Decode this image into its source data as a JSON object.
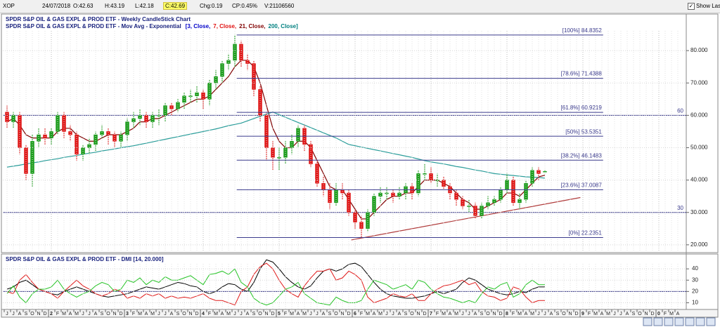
{
  "toolbar": {
    "symbol": "XOP",
    "date": "24/07/2018",
    "open": "O:42.63",
    "high": "H:43.19",
    "low": "L:42.18",
    "close": "C:42.69",
    "change": "Chg:0.19",
    "change_pct": "CP:0.45%",
    "volume": "V:21106560",
    "show_last": "Show Last"
  },
  "chart_data": [
    {
      "type": "candlestick",
      "title": "SPDR S&P OIL & GAS EXPL & PROD ETF - Weekly CandleStick Chart",
      "subtitle": "SPDR S&P OIL & GAS EXPL & PROD ETF - Mov Avg - Exponential",
      "ma_params": [
        {
          "text": "[3, Close,",
          "color": "#0000c8"
        },
        {
          "text": "7, Close,",
          "color": "#e01010"
        },
        {
          "text": "21, Close,",
          "color": "#800000"
        },
        {
          "text": "200, Close]",
          "color": "#008080"
        }
      ],
      "categories": [
        "J",
        "J",
        "A",
        "S",
        "O",
        "N",
        "D",
        "2",
        "F",
        "M",
        "A",
        "M",
        "J",
        "J",
        "A",
        "S",
        "O",
        "N",
        "D",
        "3",
        "F",
        "M",
        "A",
        "M",
        "J",
        "J",
        "A",
        "S",
        "O",
        "N",
        "D",
        "4",
        "F",
        "M",
        "A",
        "M",
        "J",
        "J",
        "A",
        "S",
        "O",
        "N",
        "D",
        "5",
        "F",
        "M",
        "A",
        "M",
        "J",
        "J",
        "A",
        "S",
        "O",
        "N",
        "D",
        "6",
        "F",
        "M",
        "A",
        "M",
        "J",
        "J",
        "A",
        "S",
        "O",
        "N",
        "D",
        "7",
        "F",
        "M",
        "A",
        "M",
        "J",
        "J",
        "A",
        "S",
        "O",
        "N",
        "D",
        "8",
        "F",
        "M",
        "A",
        "M",
        "J",
        "J",
        "A",
        "S",
        "O",
        "N",
        "D",
        "9",
        "F",
        "M",
        "A",
        "M",
        "J",
        "J",
        "A",
        "S",
        "O",
        "N",
        "D",
        "0",
        "F",
        "M",
        "A"
      ],
      "open": [
        61,
        58,
        60,
        50,
        42,
        52,
        54,
        53,
        55,
        60,
        55,
        54,
        48,
        50,
        51,
        54,
        55,
        54,
        52,
        54,
        58,
        59,
        60,
        58,
        60,
        60,
        63,
        62,
        64,
        66,
        66,
        67,
        65,
        70,
        72,
        76,
        77,
        82,
        77,
        76,
        68,
        60,
        50,
        47,
        47,
        50,
        52,
        56,
        51,
        45,
        39,
        37,
        33,
        37,
        36,
        30,
        27,
        25,
        30,
        35,
        36,
        36,
        35,
        36,
        38,
        36,
        42,
        42,
        40,
        40,
        38,
        36,
        34,
        32,
        32,
        29,
        32,
        33,
        34,
        37,
        40,
        33,
        34,
        39,
        43,
        42.63,
        null,
        null,
        null,
        null,
        null,
        null,
        null,
        null,
        null,
        null,
        null,
        null,
        null,
        null,
        null,
        null,
        null,
        null,
        null,
        null,
        null
      ],
      "high": [
        63,
        61,
        61,
        51,
        54,
        56,
        56,
        56,
        61,
        61,
        57,
        55,
        51,
        53,
        55,
        57,
        56,
        55,
        55,
        59,
        61,
        62,
        61,
        61,
        62,
        64,
        64,
        65,
        67,
        68,
        69,
        68,
        71,
        74,
        77,
        79,
        84.84,
        83,
        79,
        77,
        69,
        61,
        52,
        50,
        52,
        54,
        57,
        57,
        52,
        46,
        41,
        39,
        39,
        39,
        37,
        31,
        29,
        31,
        36,
        38,
        38,
        37,
        38,
        39,
        39,
        43,
        45,
        44,
        42,
        41,
        39,
        37,
        35,
        34,
        33,
        33,
        35,
        35,
        38,
        42,
        41,
        36,
        40,
        44,
        44,
        43.19,
        null,
        null,
        null,
        null,
        null,
        null,
        null,
        null,
        null,
        null,
        null,
        null,
        null,
        null,
        null,
        null,
        null,
        null,
        null,
        null,
        null
      ],
      "low": [
        56,
        56,
        48,
        40,
        38,
        50,
        51,
        51,
        54,
        53,
        52,
        46,
        46,
        48,
        49,
        53,
        51,
        50,
        50,
        52,
        56,
        57,
        56,
        56,
        57,
        58,
        60,
        61,
        62,
        64,
        64,
        62,
        63,
        68,
        70,
        74,
        75,
        75,
        74,
        66,
        58,
        46,
        43,
        43,
        45,
        48,
        50,
        49,
        44,
        38,
        35,
        31,
        32,
        34,
        29,
        25,
        22.24,
        24,
        29,
        33,
        34,
        33,
        34,
        34,
        34,
        35,
        40,
        39,
        38,
        37,
        34,
        32,
        31,
        30,
        28,
        28,
        31,
        32,
        33,
        36,
        32,
        31,
        33,
        38,
        40,
        42.18,
        null,
        null,
        null,
        null,
        null,
        null,
        null,
        null,
        null,
        null,
        null,
        null,
        null,
        null,
        null,
        null,
        null,
        null,
        null,
        null,
        null
      ],
      "close": [
        58,
        60,
        50,
        42,
        52,
        54,
        53,
        55,
        60,
        55,
        54,
        48,
        50,
        51,
        54,
        55,
        54,
        52,
        54,
        58,
        59,
        60,
        58,
        60,
        60,
        63,
        62,
        64,
        66,
        66,
        67,
        65,
        70,
        72,
        76,
        77,
        82,
        77,
        76,
        68,
        60,
        50,
        47,
        47,
        50,
        52,
        56,
        51,
        45,
        39,
        37,
        33,
        37,
        36,
        30,
        27,
        25,
        30,
        35,
        36,
        36,
        35,
        36,
        38,
        36,
        42,
        42,
        40,
        40,
        38,
        36,
        34,
        32,
        32,
        29,
        32,
        33,
        34,
        37,
        40,
        33,
        34,
        39,
        43,
        42,
        42.69,
        null,
        null,
        null,
        null,
        null,
        null,
        null,
        null,
        null,
        null,
        null,
        null,
        null,
        null,
        null,
        null,
        null,
        null,
        null,
        null,
        null
      ],
      "up_color": "#1e9e1e",
      "down_color": "#e01818",
      "moving_averages": [
        {
          "color": "#800000",
          "values": [
            58,
            59,
            57,
            54,
            53,
            53,
            53,
            53,
            55,
            56,
            56,
            54,
            53,
            52,
            52,
            53,
            54,
            54,
            54,
            55,
            56,
            58,
            58,
            59,
            59,
            60,
            61,
            62,
            63,
            64,
            65,
            65,
            66,
            68,
            70,
            72,
            75,
            77,
            77,
            75,
            70,
            63,
            56,
            52,
            50,
            50,
            52,
            52,
            50,
            46,
            42,
            38,
            37,
            37,
            34,
            31,
            28,
            28,
            30,
            32,
            34,
            35,
            35,
            36,
            36,
            38,
            40,
            40,
            40,
            39,
            38,
            36,
            34,
            33,
            31,
            31,
            32,
            33,
            34,
            36,
            36,
            35,
            37,
            39,
            41,
            41.5,
            null,
            null,
            null,
            null,
            null,
            null,
            null,
            null,
            null,
            null,
            null,
            null,
            null,
            null,
            null,
            null,
            null,
            null,
            null,
            null,
            null
          ]
        },
        {
          "color": "#2a9d9a",
          "values": [
            44,
            44.3,
            44.6,
            45,
            45.3,
            45.6,
            46,
            46.3,
            46.6,
            47,
            47.3,
            47.6,
            48,
            48.3,
            48.6,
            49,
            49.3,
            49.6,
            50,
            50.3,
            50.6,
            51,
            51.4,
            51.8,
            52.2,
            52.6,
            53,
            53.4,
            53.8,
            54.2,
            54.6,
            55,
            55.4,
            55.8,
            56.3,
            56.8,
            57.2,
            57.6,
            58.3,
            59,
            59.7,
            60.4,
            61,
            60.2,
            59.4,
            58.6,
            57.8,
            57,
            56.2,
            55.4,
            54.6,
            53.8,
            53,
            52,
            51,
            50.6,
            50.2,
            49.8,
            49.4,
            49,
            48.6,
            48.2,
            47.8,
            47.4,
            47,
            46.5,
            46,
            45.6,
            45.3,
            45,
            44.6,
            44.2,
            43.9,
            43.5,
            43.1,
            42.8,
            42.4,
            42,
            41.8,
            41.6,
            41.4,
            41.2,
            41,
            40.9,
            40.8,
            40.6,
            null,
            null,
            null,
            null,
            null,
            null,
            null,
            null,
            null,
            null,
            null,
            null,
            null,
            null,
            null,
            null,
            null,
            null,
            null,
            null,
            null
          ]
        }
      ],
      "ylim": [
        17.8,
        91.3
      ],
      "yticks": [
        {
          "value": 20,
          "label": "20.000"
        },
        {
          "value": 30,
          "label": "30.000"
        },
        {
          "value": 40,
          "label": "40.000"
        },
        {
          "value": 50,
          "label": "50.000"
        },
        {
          "value": 60,
          "label": "60.000"
        },
        {
          "value": 70,
          "label": "70.000"
        },
        {
          "value": 80,
          "label": "80.000"
        }
      ],
      "grid": true,
      "fibonacci": {
        "x": [
          36.3,
          94.2
        ],
        "color": "#3a3a8c",
        "levels": [
          {
            "label": "[100%] 84.8352",
            "value": 84.8352
          },
          {
            "label": "[78.6%] 71.4388",
            "value": 71.4388
          },
          {
            "label": "[61.8%] 60.9219",
            "value": 60.9219
          },
          {
            "label": "[50%] 53.5351",
            "value": 53.5351
          },
          {
            "label": "[38.2%] 46.1483",
            "value": 46.1483
          },
          {
            "label": "[23.6%] 37.0087",
            "value": 37.0087
          },
          {
            "label": "[0%] 22.2351",
            "value": 22.2351
          }
        ]
      },
      "reference_lines": [
        60,
        30
      ],
      "trendline": {
        "x": [
          54.4,
          90.6
        ],
        "y": [
          21.5,
          34.6
        ],
        "color": "#b03a3a"
      }
    },
    {
      "type": "line",
      "title": "SPDR S&P OIL & GAS EXPL & PROD ETF - DMI [14, 20.000]",
      "series": [
        {
          "color": "#000000",
          "values": [
            22,
            24,
            28,
            30,
            26,
            22,
            20,
            18,
            17,
            20,
            22,
            24,
            22,
            20,
            18,
            16,
            15,
            16,
            17,
            18,
            20,
            22,
            24,
            23,
            22,
            24,
            26,
            28,
            27,
            25,
            24,
            20,
            18,
            20,
            24,
            27,
            26,
            22,
            20,
            28,
            40,
            48,
            46,
            40,
            33,
            28,
            24,
            22,
            25,
            32,
            38,
            40,
            38,
            40,
            44,
            45,
            42,
            35,
            28,
            22,
            18,
            16,
            15,
            14,
            14,
            15,
            16,
            18,
            20,
            18,
            20,
            22,
            28,
            32,
            30,
            26,
            22,
            20,
            18,
            17,
            18,
            20,
            19,
            22,
            24,
            24,
            null,
            null,
            null,
            null,
            null,
            null,
            null,
            null,
            null,
            null,
            null,
            null,
            null,
            null,
            null,
            null,
            null,
            null,
            null,
            null,
            null
          ]
        },
        {
          "color": "#e01818",
          "values": [
            20,
            18,
            30,
            35,
            28,
            22,
            20,
            18,
            14,
            20,
            25,
            30,
            25,
            22,
            18,
            16,
            18,
            22,
            20,
            14,
            16,
            14,
            18,
            16,
            18,
            14,
            16,
            14,
            15,
            14,
            16,
            18,
            14,
            12,
            12,
            10,
            8,
            20,
            24,
            35,
            42,
            45,
            40,
            30,
            22,
            18,
            15,
            25,
            32,
            38,
            38,
            40,
            30,
            32,
            38,
            35,
            30,
            15,
            10,
            12,
            14,
            18,
            16,
            15,
            18,
            12,
            12,
            18,
            22,
            25,
            26,
            28,
            30,
            26,
            28,
            20,
            16,
            15,
            12,
            14,
            24,
            22,
            15,
            10,
            12,
            12,
            null,
            null,
            null,
            null,
            null,
            null,
            null,
            null,
            null,
            null,
            null,
            null,
            null,
            null,
            null,
            null,
            null,
            null,
            null,
            null,
            null
          ]
        },
        {
          "color": "#22c322",
          "values": [
            18,
            25,
            15,
            10,
            18,
            22,
            22,
            24,
            30,
            22,
            18,
            15,
            18,
            20,
            25,
            28,
            26,
            20,
            22,
            30,
            28,
            32,
            26,
            30,
            28,
            33,
            30,
            30,
            32,
            34,
            30,
            26,
            35,
            36,
            38,
            35,
            40,
            28,
            24,
            14,
            10,
            8,
            10,
            16,
            22,
            24,
            28,
            18,
            14,
            10,
            9,
            8,
            15,
            12,
            10,
            10,
            12,
            22,
            30,
            28,
            26,
            22,
            24,
            26,
            22,
            30,
            28,
            22,
            18,
            15,
            14,
            12,
            10,
            12,
            10,
            18,
            24,
            22,
            26,
            28,
            15,
            18,
            26,
            30,
            26,
            26,
            null,
            null,
            null,
            null,
            null,
            null,
            null,
            null,
            null,
            null,
            null,
            null,
            null,
            null,
            null,
            null,
            null,
            null,
            null,
            null,
            null
          ]
        }
      ],
      "ylim": [
        4.7,
        52.5
      ],
      "yticks": [
        10,
        20,
        30,
        40
      ],
      "threshold": 20,
      "grid": true
    }
  ]
}
